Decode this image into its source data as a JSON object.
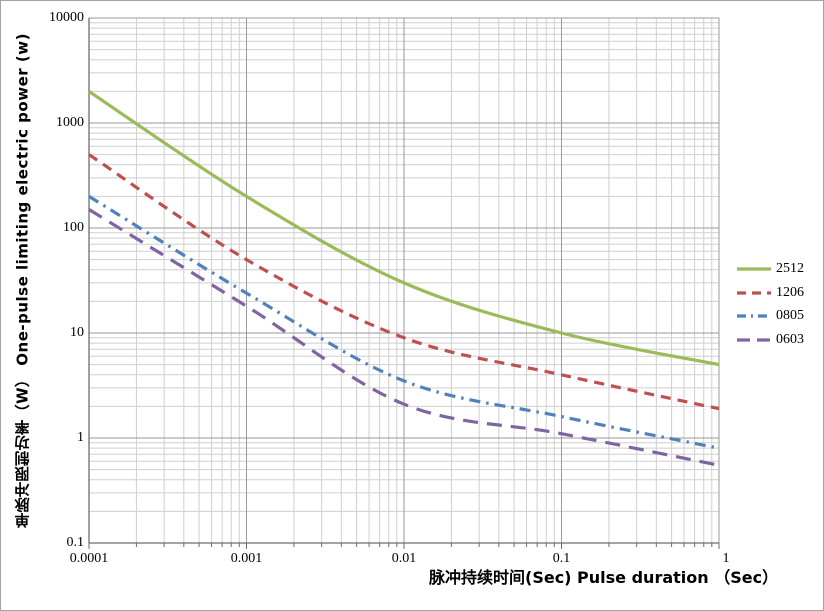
{
  "figure": {
    "background": "#FFFFFF",
    "border_color": "#A3A3A3"
  },
  "chart_data": {
    "type": "line",
    "title": "",
    "xlabel": "脉冲持续时间(Sec) Pulse duration （Sec）",
    "ylabel": "单脉冲限制功率（W） One-pulse limiting electric power (w)",
    "x_scale": "log",
    "y_scale": "log",
    "xlim": [
      0.0001,
      1
    ],
    "ylim": [
      0.1,
      10000
    ],
    "x_ticks": [
      "0.0001",
      "0.001",
      "0.01",
      "0.1",
      "1"
    ],
    "y_ticks": [
      "10000",
      "1000",
      "100",
      "10",
      "1",
      "0.1"
    ],
    "grid": {
      "major": true,
      "minor": true,
      "major_color": "#9A9A9A",
      "minor_color": "#CFCFCF",
      "axis_color": "#6E6E6E"
    },
    "legend_position": "right",
    "x": [
      0.0001,
      0.001,
      0.01,
      0.1,
      1
    ],
    "series": [
      {
        "name": "2512",
        "color": "#9BBB59",
        "dash": "solid",
        "values": [
          2000,
          200,
          30,
          10,
          5
        ]
      },
      {
        "name": "1206",
        "color": "#C0504D",
        "dash": "dash",
        "values": [
          500,
          50,
          9,
          4,
          1.9
        ]
      },
      {
        "name": "0805",
        "color": "#4F81BD",
        "dash": "dashdot",
        "values": [
          200,
          24,
          3.5,
          1.6,
          0.8
        ]
      },
      {
        "name": "0603",
        "color": "#8064A2",
        "dash": "longdash",
        "values": [
          150,
          18,
          2.1,
          1.1,
          0.55
        ]
      }
    ]
  }
}
